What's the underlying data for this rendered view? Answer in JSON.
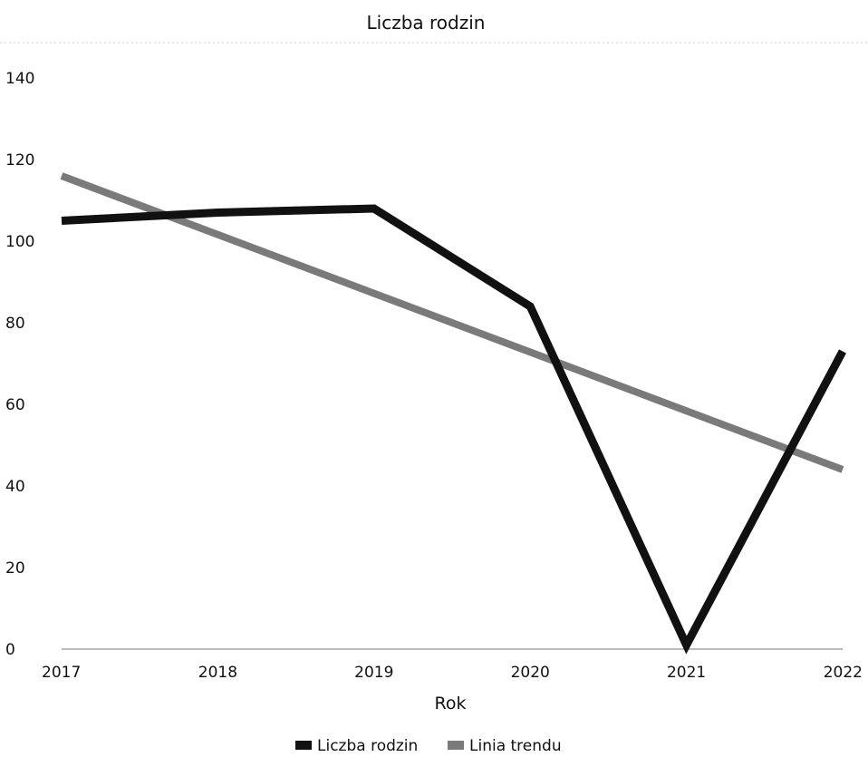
{
  "chart_data": {
    "type": "line",
    "title": "Liczba rodzin",
    "xlabel": "Rok",
    "ylabel": "",
    "x": [
      "2017",
      "2018",
      "2019",
      "2020",
      "2021",
      "2022"
    ],
    "yticks": [
      "0",
      "20",
      "40",
      "60",
      "80",
      "100",
      "120",
      "140"
    ],
    "ylim": [
      0,
      140
    ],
    "grid": false,
    "legend": "bottom",
    "series": [
      {
        "name": "Liczba rodzin",
        "values": [
          105,
          107,
          108,
          84,
          1,
          73
        ],
        "color": "#111111"
      },
      {
        "name": "Linia trendu",
        "values": [
          116,
          101.6,
          87.2,
          72.8,
          58.4,
          44
        ],
        "color": "#7a7a7a"
      }
    ]
  }
}
